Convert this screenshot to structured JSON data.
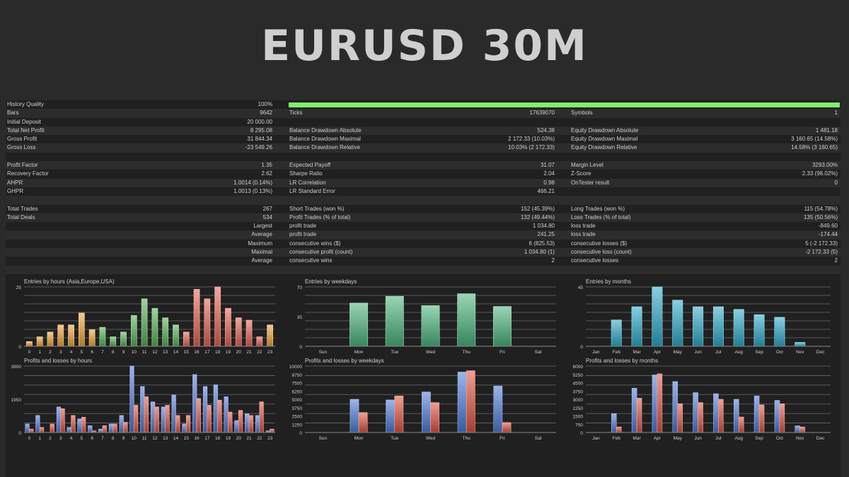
{
  "page": {
    "title": "EURUSD 30M"
  },
  "colors": {
    "hours_entries": [
      "#f0a030",
      "#f0a030",
      "#f0a030",
      "#f0a030",
      "#f0a030",
      "#f0a030",
      "#f0a030",
      "#50b050",
      "#50b050",
      "#50b050",
      "#50b050",
      "#50b050",
      "#50b050",
      "#50b050",
      "#50b050",
      "#e85f4f",
      "#e85f4f",
      "#e85f4f",
      "#e85f4f",
      "#e85f4f",
      "#e85f4f",
      "#e85f4f",
      "#e85f4f",
      "#f0a030"
    ],
    "weekday_entries": "#48b27a",
    "month_entries": "#28a8c8",
    "profit": "#4a78d8",
    "loss": "#e0503c",
    "history_bar": "#7ff06a"
  },
  "report": {
    "rows": [
      {
        "l1": "History Quality",
        "v1": "100%",
        "bar": true
      },
      {
        "l1": "Bars",
        "v1": "9642",
        "l2": "Ticks",
        "v2": "17639070",
        "l3": "Symbols",
        "v3": "1"
      },
      {
        "l1": "Initial Deposit",
        "v1": "20 000.00"
      },
      {
        "l1": "Total Net Profit",
        "v1": "8 295.08",
        "l2": "Balance Drawdown Absolute",
        "v2": "524.38",
        "l3": "Equity Drawdown Absolute",
        "v3": "1 481.18"
      },
      {
        "l1": "Gross Profit",
        "v1": "31 844.34",
        "l2": "Balance Drawdown Maximal",
        "v2": "2 172.33 (10.03%)",
        "l3": "Equity Drawdown Maximal",
        "v3": "3 160.65 (14.58%)"
      },
      {
        "l1": "Gross Loss",
        "v1": "-23 549.26",
        "l2": "Balance Drawdown Relative",
        "v2": "10.03% (2 172.33)",
        "l3": "Equity Drawdown Relative",
        "v3": "14.58% (3 160.65)"
      },
      {},
      {
        "l1": "Profit Factor",
        "v1": "1.35",
        "l2": "Expected Payoff",
        "v2": "31.07",
        "l3": "Margin Level",
        "v3": "3293.00%"
      },
      {
        "l1": "Recovery Factor",
        "v1": "2.62",
        "l2": "Sharpe Ratio",
        "v2": "2.04",
        "l3": "Z-Score",
        "v3": "2.33 (98.02%)"
      },
      {
        "l1": "AHPR",
        "v1": "1.0014 (0.14%)",
        "l2": "LR Correlation",
        "v2": "0.98",
        "l3": "OnTester result",
        "v3": "0"
      },
      {
        "l1": "GHPR",
        "v1": "1.0013 (0.13%)",
        "l2": "LR Standard Error",
        "v2": "466.21"
      },
      {},
      {
        "l1": "Total Trades",
        "v1": "267",
        "l2": "Short Trades (won %)",
        "v2": "152 (45.39%)",
        "l3": "Long Trades (won %)",
        "v3": "115 (54.78%)"
      },
      {
        "l1": "Total Deals",
        "v1": "534",
        "l2": "Profit Trades (% of total)",
        "v2": "132 (49.44%)",
        "l3": "Loss Trades (% of total)",
        "v3": "135 (50.56%)"
      },
      {
        "rl": "Largest",
        "l2": "profit trade",
        "v2": "1 034.80",
        "l3": "loss trade",
        "v3": "-849.60"
      },
      {
        "rl": "Average",
        "l2": "profit trade",
        "v2": "241.25",
        "l3": "loss trade",
        "v3": "-174.44"
      },
      {
        "rl": "Maximum",
        "l2": "consecutive wins ($)",
        "v2": "6 (825.53)",
        "l3": "consecutive losses ($)",
        "v3": "5 (-2 172.33)"
      },
      {
        "rl": "Maximal",
        "l2": "consecutive profit (count)",
        "v2": "1 034.80 (1)",
        "l3": "consecutive loss (count)",
        "v3": "-2 172.33 (5)"
      },
      {
        "rl": "Average",
        "l2": "consecutive wins",
        "v2": "2",
        "l3": "consecutive losses",
        "v3": "2"
      },
      {}
    ]
  },
  "chart_data": [
    {
      "id": "hours-entries",
      "type": "bar",
      "title": "Entries by hours (Asia,Europe,USA)",
      "categories": [
        "0",
        "1",
        "2",
        "3",
        "4",
        "5",
        "6",
        "7",
        "8",
        "9",
        "10",
        "11",
        "12",
        "13",
        "14",
        "15",
        "16",
        "17",
        "18",
        "19",
        "20",
        "21",
        "22",
        "23"
      ],
      "yticks": [
        "25",
        "0"
      ],
      "ylim": [
        0,
        25
      ],
      "values": [
        2,
        4,
        6,
        9,
        9,
        14,
        7,
        8,
        4,
        6,
        13,
        20,
        16,
        12,
        9,
        6,
        24,
        20,
        25,
        16,
        12,
        11,
        4,
        9
      ]
    },
    {
      "id": "weekday-entries",
      "type": "bar",
      "title": "Entries by weekdays",
      "categories": [
        "Sun",
        "Mon",
        "Tue",
        "Wed",
        "Thu",
        "Fri",
        "Sat"
      ],
      "yticks": [
        "70",
        "35",
        "0"
      ],
      "ylim": [
        0,
        70
      ],
      "values": [
        0,
        51,
        59,
        48,
        62,
        47,
        0
      ]
    },
    {
      "id": "month-entries",
      "type": "bar",
      "title": "Entries by months",
      "categories": [
        "Jan",
        "Feb",
        "Mar",
        "Apr",
        "May",
        "Jun",
        "Jul",
        "Aug",
        "Sep",
        "Oct",
        "Nov",
        "Dec"
      ],
      "yticks": [
        "45",
        "0"
      ],
      "ylim": [
        0,
        45
      ],
      "values": [
        0,
        20,
        30,
        45,
        35,
        30,
        30,
        28,
        24,
        22,
        3,
        0
      ]
    },
    {
      "id": "hours-pl",
      "type": "bar",
      "title": "Profits and losses by hours",
      "categories": [
        "0",
        "1",
        "2",
        "3",
        "4",
        "5",
        "6",
        "7",
        "8",
        "9",
        "10",
        "11",
        "12",
        "13",
        "14",
        "15",
        "16",
        "17",
        "18",
        "19",
        "20",
        "21",
        "22",
        "23"
      ],
      "yticks": [
        "3900",
        "1950",
        "0"
      ],
      "ylim": [
        0,
        3900
      ],
      "series": [
        {
          "name": "profit",
          "values": [
            500,
            1000,
            0,
            1500,
            300,
            800,
            400,
            200,
            500,
            1000,
            3900,
            2700,
            1800,
            1500,
            2200,
            500,
            3400,
            2700,
            2800,
            2100,
            700,
            1100,
            1000,
            100
          ]
        },
        {
          "name": "loss",
          "values": [
            200,
            300,
            500,
            1400,
            1000,
            900,
            100,
            400,
            500,
            600,
            1600,
            2100,
            1500,
            1600,
            1000,
            1000,
            2000,
            1600,
            1900,
            1200,
            1300,
            1000,
            1800,
            200
          ]
        }
      ]
    },
    {
      "id": "weekday-pl",
      "type": "bar",
      "title": "Profits and losses by weekdays",
      "categories": [
        "Sun",
        "Mon",
        "Tue",
        "Wed",
        "Thu",
        "Fri",
        "Sat"
      ],
      "yticks": [
        "10000",
        "8750",
        "7500",
        "6250",
        "5000",
        "3750",
        "2500",
        "1250",
        "0"
      ],
      "ylim": [
        0,
        10000
      ],
      "series": [
        {
          "name": "profit",
          "values": [
            0,
            5000,
            4900,
            6100,
            9100,
            7000,
            0
          ]
        },
        {
          "name": "loss",
          "values": [
            0,
            3000,
            5500,
            4500,
            9300,
            1500,
            0
          ]
        }
      ]
    },
    {
      "id": "month-pl",
      "type": "bar",
      "title": "Profits and losses by months",
      "categories": [
        "Jan",
        "Feb",
        "Mar",
        "Apr",
        "May",
        "Jun",
        "Jul",
        "Aug",
        "Sep",
        "Oct",
        "Nov",
        "Dec"
      ],
      "yticks": [
        "6000",
        "5250",
        "4500",
        "3750",
        "3000",
        "2250",
        "1500",
        "750",
        "0"
      ],
      "ylim": [
        0,
        6000
      ],
      "series": [
        {
          "name": "profit",
          "values": [
            0,
            1700,
            4000,
            5200,
            4600,
            3600,
            3500,
            3000,
            3300,
            2900,
            600,
            0
          ]
        },
        {
          "name": "loss",
          "values": [
            0,
            500,
            3100,
            5300,
            2600,
            2700,
            3000,
            1400,
            2500,
            2600,
            500,
            0
          ]
        }
      ]
    }
  ]
}
